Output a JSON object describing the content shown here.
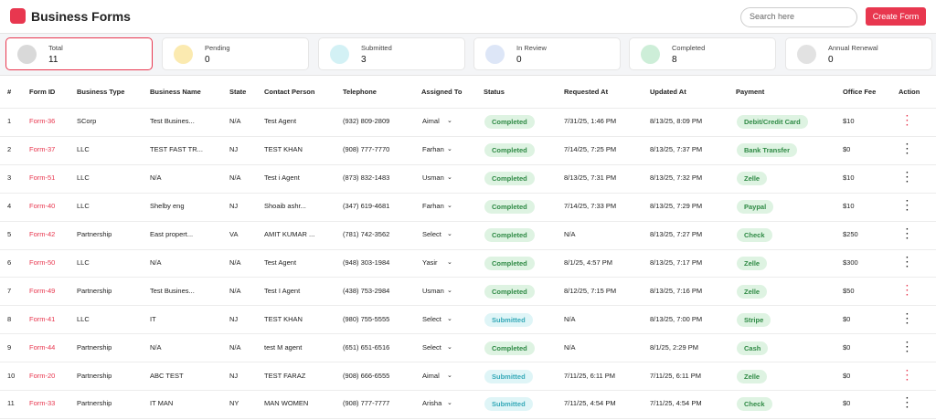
{
  "header": {
    "title": "Business Forms",
    "search_placeholder": "Search here",
    "button": "Create Form"
  },
  "stats": [
    {
      "label": "Total",
      "value": "11"
    },
    {
      "label": "Pending",
      "value": "0"
    },
    {
      "label": "Submitted",
      "value": "3"
    },
    {
      "label": "In Review",
      "value": "0"
    },
    {
      "label": "Completed",
      "value": "8"
    },
    {
      "label": "Annual Renewal",
      "value": "0"
    }
  ],
  "table": {
    "columns": [
      "#",
      "Form ID",
      "Business Type",
      "Business Name",
      "State",
      "Contact Person",
      "Telephone",
      "Assigned To",
      "Status",
      "Requested At",
      "Updated At",
      "Payment",
      "Office Fee",
      "Action"
    ],
    "rows": [
      [
        "1",
        "Form-36",
        "SCorp",
        "Test Busines...",
        "N/A",
        "Test Agent",
        "(932) 809-2809",
        "Aimal",
        "Completed",
        "7/31/25, 1:46 PM",
        "8/13/25, 8:09 PM",
        "Debit/Credit Card",
        "$10"
      ],
      [
        "2",
        "Form-37",
        "LLC",
        "TEST FAST TR...",
        "NJ",
        "TEST KHAN",
        "(908) 777-7770",
        "Farhan",
        "Completed",
        "7/14/25, 7:25 PM",
        "8/13/25, 7:37 PM",
        "Bank Transfer",
        "$0"
      ],
      [
        "3",
        "Form-51",
        "LLC",
        "N/A",
        "N/A",
        "Test i Agent",
        "(873) 832-1483",
        "Usman",
        "Completed",
        "8/13/25, 7:31 PM",
        "8/13/25, 7:32 PM",
        "Zelle",
        "$10"
      ],
      [
        "4",
        "Form-40",
        "LLC",
        "Shelby eng",
        "NJ",
        "Shoaib ashr...",
        "(347) 619-4681",
        "Farhan",
        "Completed",
        "7/14/25, 7:33 PM",
        "8/13/25, 7:29 PM",
        "Paypal",
        "$10"
      ],
      [
        "5",
        "Form-42",
        "Partnership",
        "East propert...",
        "VA",
        "AMIT KUMAR ...",
        "(781) 742-3562",
        "Select",
        "Completed",
        "N/A",
        "8/13/25, 7:27 PM",
        "Check",
        "$250"
      ],
      [
        "6",
        "Form-50",
        "LLC",
        "N/A",
        "N/A",
        "Test Agent",
        "(948) 303-1984",
        "Yasir",
        "Completed",
        "8/1/25, 4:57 PM",
        "8/13/25, 7:17 PM",
        "Zelle",
        "$300"
      ],
      [
        "7",
        "Form-49",
        "Partnership",
        "Test Busines...",
        "N/A",
        "Test I Agent",
        "(438) 753-2984",
        "Usman",
        "Completed",
        "8/12/25, 7:15 PM",
        "8/13/25, 7:16 PM",
        "Zelle",
        "$50"
      ],
      [
        "8",
        "Form-41",
        "LLC",
        "IT",
        "NJ",
        "TEST KHAN",
        "(980) 755-5555",
        "Select",
        "Submitted",
        "N/A",
        "8/13/25, 7:00 PM",
        "Stripe",
        "$0"
      ],
      [
        "9",
        "Form-44",
        "Partnership",
        "N/A",
        "N/A",
        "test M agent",
        "(651) 651-6516",
        "Select",
        "Completed",
        "N/A",
        "8/1/25, 2:29 PM",
        "Cash",
        "$0"
      ],
      [
        "10",
        "Form-20",
        "Partnership",
        "ABC TEST",
        "NJ",
        "TEST FARAZ",
        "(908) 666-6555",
        "Aimal",
        "Submitted",
        "7/11/25, 6:11 PM",
        "7/11/25, 6:11 PM",
        "Zelle",
        "$0"
      ],
      [
        "11",
        "Form-33",
        "Partnership",
        "IT MAN",
        "NY",
        "MAN WOMEN",
        "(908) 777-7777",
        "Arisha",
        "Submitted",
        "7/11/25, 4:54 PM",
        "7/11/25, 4:54 PM",
        "Check",
        "$0"
      ]
    ],
    "action_colors": [
      "#e8374f",
      "#222",
      "#222",
      "#222",
      "#222",
      "#222",
      "#e8374f",
      "#222",
      "#222",
      "#e8374f",
      "#222"
    ]
  }
}
